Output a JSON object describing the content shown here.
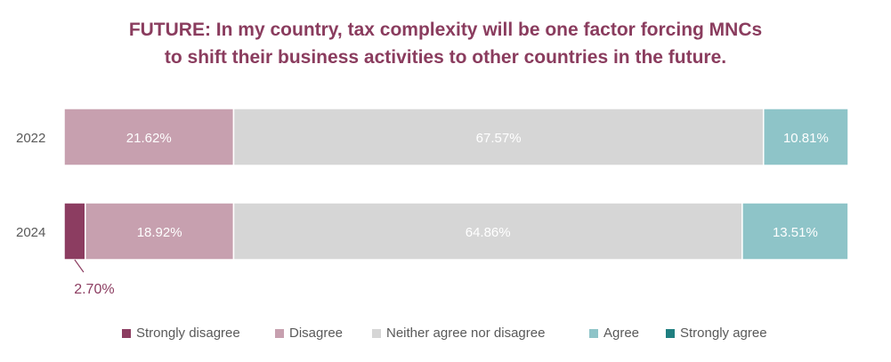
{
  "chart_data": {
    "type": "bar",
    "orientation": "horizontal-stacked-100",
    "title": "FUTURE: In my country, tax complexity will be one factor forcing MNCs to shift their business activities to other countries in the future.",
    "title_lines": [
      "FUTURE: In my country, tax complexity will be one factor forcing MNCs",
      "to shift their business activities to other countries in the future."
    ],
    "categories": [
      "2022",
      "2024"
    ],
    "series": [
      {
        "name": "Strongly disagree",
        "color": "#8c3d61",
        "values": [
          0,
          2.7
        ],
        "labels": [
          "",
          "2.70%"
        ]
      },
      {
        "name": "Disagree",
        "color": "#c7a0af",
        "values": [
          21.62,
          18.92
        ],
        "labels": [
          "21.62%",
          "18.92%"
        ]
      },
      {
        "name": "Neither agree nor disagree",
        "color": "#d6d6d6",
        "values": [
          67.57,
          64.86
        ],
        "labels": [
          "67.57%",
          "64.86%"
        ]
      },
      {
        "name": "Agree",
        "color": "#8ec4c8",
        "values": [
          10.81,
          13.51
        ],
        "labels": [
          "10.81%",
          "13.51%"
        ]
      },
      {
        "name": "Strongly agree",
        "color": "#1f7f80",
        "values": [
          0,
          0
        ],
        "labels": [
          "",
          ""
        ]
      }
    ],
    "xlim": [
      0,
      100
    ],
    "legend_position": "bottom",
    "grid": false
  }
}
